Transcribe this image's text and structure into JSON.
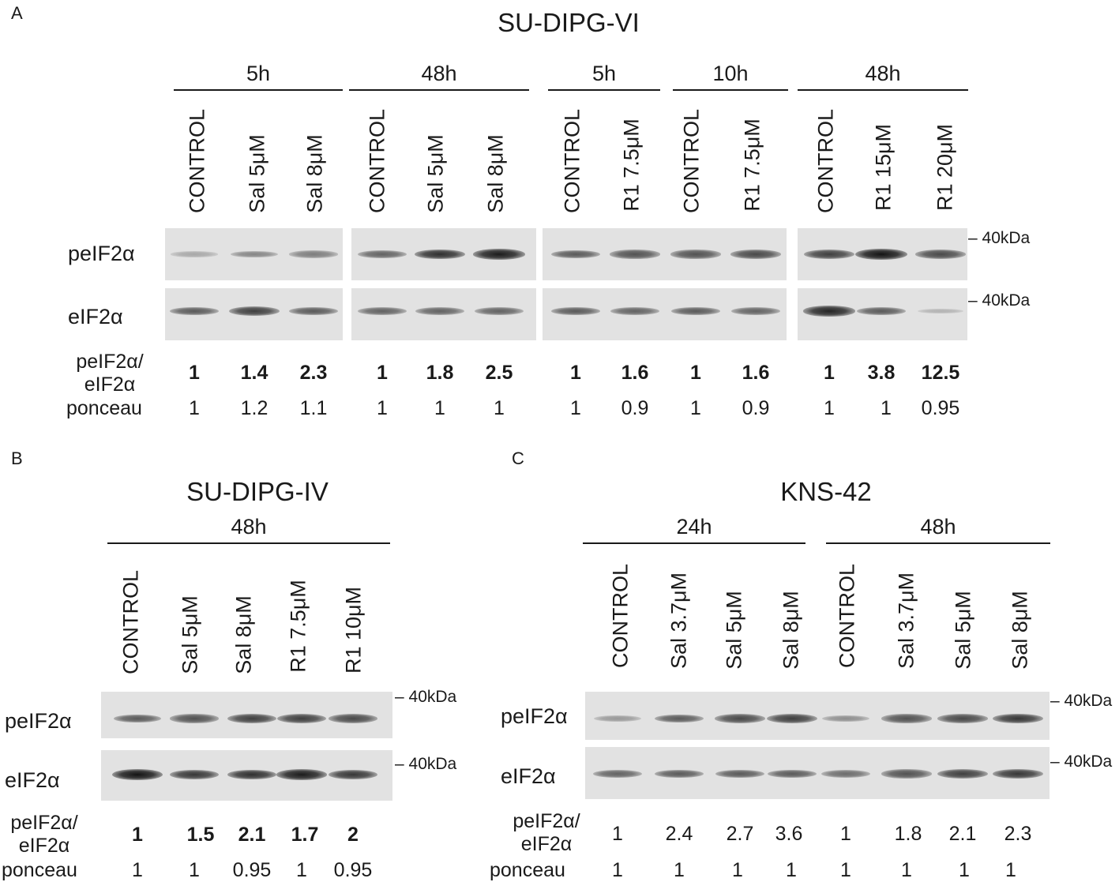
{
  "panels": [
    {
      "letter": "A",
      "title": "SU-DIPG-VI",
      "groups": [
        "5h",
        "48h",
        "5h",
        "10h",
        "48h"
      ],
      "lanes": [
        "CONTROL",
        "Sal 5μM",
        "Sal 8μM",
        "CONTROL",
        "Sal 5μM",
        "Sal 8μM",
        "CONTROL",
        "R1 7.5μM",
        "CONTROL",
        "R1 7.5μM",
        "CONTROL",
        "R1 15μM",
        "R1 20μM"
      ],
      "row_labels": {
        "p": "peIF2α",
        "t": "eIF2α",
        "ratio_top": "peIF2α/",
        "ratio_bottom": "eIF2α",
        "ponceau": "ponceau"
      },
      "marker": "40kDa",
      "ratio": [
        "1",
        "1.4",
        "2.3",
        "1",
        "1.8",
        "2.5",
        "1",
        "1.6",
        "1",
        "1.6",
        "1",
        "3.8",
        "12.5"
      ],
      "ponceau": [
        "1",
        "1.2",
        "1.1",
        "1",
        "1",
        "1",
        "1",
        "0.9",
        "1",
        "0.9",
        "1",
        "1",
        "0.95"
      ],
      "p_intensity": [
        0.15,
        0.35,
        0.4,
        0.55,
        0.85,
        0.95,
        0.6,
        0.65,
        0.65,
        0.7,
        0.75,
        1.0,
        0.7
      ],
      "t_intensity": [
        0.6,
        0.75,
        0.6,
        0.55,
        0.55,
        0.55,
        0.6,
        0.55,
        0.6,
        0.55,
        0.9,
        0.6,
        0.1
      ]
    },
    {
      "letter": "B",
      "title": "SU-DIPG-IV",
      "groups": [
        "48h"
      ],
      "lanes": [
        "CONTROL",
        "Sal 5μM",
        "Sal 8μM",
        "R1 7.5μM",
        "R1 10μM"
      ],
      "row_labels": {
        "p": "peIF2α",
        "t": "eIF2α",
        "ratio_top": "peIF2α/",
        "ratio_bottom": "eIF2α",
        "ponceau": "ponceau"
      },
      "marker": "40kDa",
      "ratio": [
        "1",
        "1.5",
        "2.1",
        "1.7",
        "2"
      ],
      "ponceau": [
        "1",
        "1",
        "0.95",
        "1",
        "0.95"
      ],
      "p_intensity": [
        0.6,
        0.65,
        0.75,
        0.75,
        0.7
      ],
      "t_intensity": [
        1.0,
        0.8,
        0.85,
        0.95,
        0.8
      ]
    },
    {
      "letter": "C",
      "title": "KNS-42",
      "groups": [
        "24h",
        "48h"
      ],
      "lanes": [
        "CONTROL",
        "Sal 3.7μM",
        "Sal 5μM",
        "Sal 8μM",
        "CONTROL",
        "Sal 3.7μM",
        "Sal 5μM",
        "Sal 8μM"
      ],
      "row_labels": {
        "p": "peIF2α",
        "t": "eIF2α",
        "ratio_top": "peIF2α/",
        "ratio_bottom": "eIF2α",
        "ponceau": "ponceau"
      },
      "marker": "40kDa",
      "ratio": [
        "1",
        "2.4",
        "2.7",
        "3.6",
        "1",
        "1.8",
        "2.1",
        "2.3"
      ],
      "ponceau": [
        "1",
        "1",
        "1",
        "1",
        "1",
        "1",
        "1",
        "1"
      ],
      "p_intensity": [
        0.25,
        0.6,
        0.7,
        0.75,
        0.3,
        0.65,
        0.7,
        0.8
      ],
      "t_intensity": [
        0.55,
        0.6,
        0.6,
        0.6,
        0.5,
        0.65,
        0.75,
        0.8
      ]
    }
  ]
}
